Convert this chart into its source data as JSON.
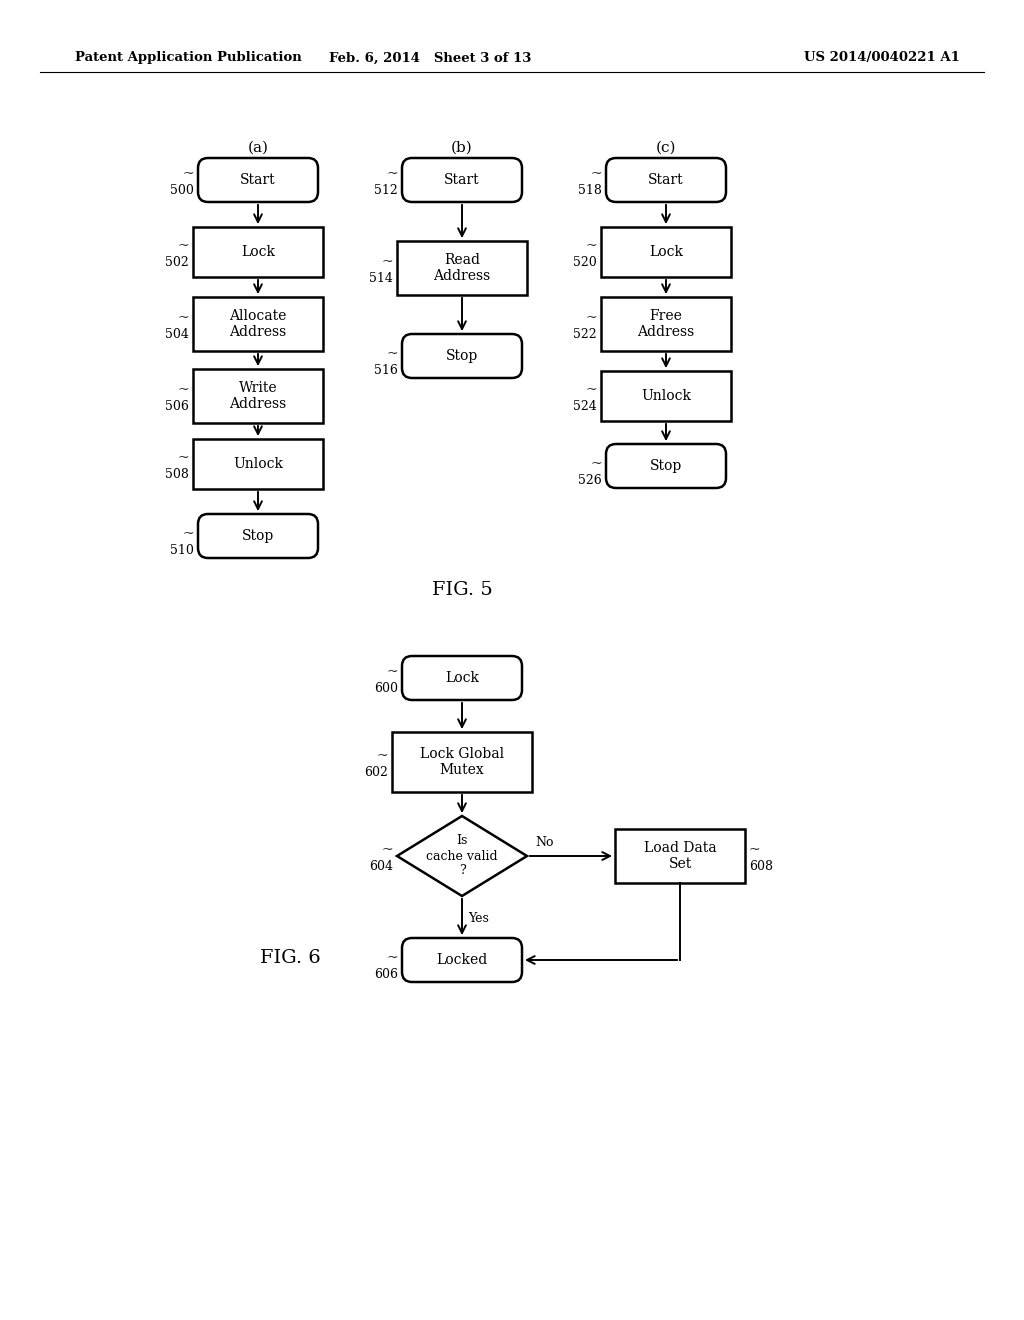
{
  "bg_color": "#ffffff",
  "header_text": "Patent Application Publication",
  "header_date": "Feb. 6, 2014   Sheet 3 of 13",
  "header_patent": "US 2014/0040221 A1",
  "fig5_label": "FIG. 5",
  "fig6_label": "FIG. 6"
}
